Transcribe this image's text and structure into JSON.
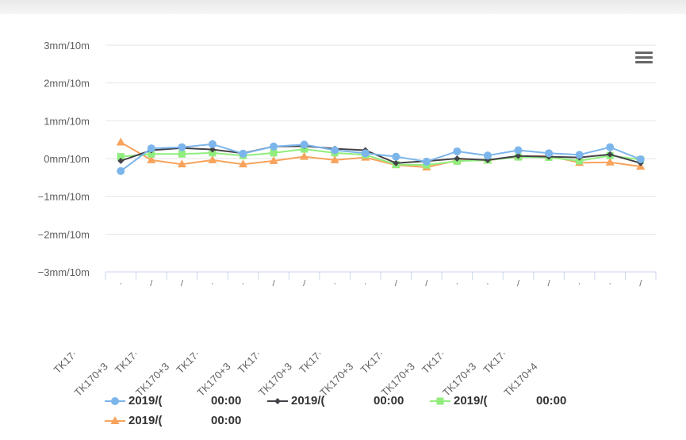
{
  "chart_data": {
    "type": "line",
    "yaxis": {
      "ticks": [
        "3mm/10m",
        "2mm/10m",
        "1mm/10m",
        "0mm/10m",
        "−1mm/10m",
        "−2mm/10m",
        "−3mm/10m"
      ],
      "ylim": [
        -3,
        3
      ]
    },
    "xaxis": {
      "labels": [
        "TK17·",
        "TK170+3",
        "TK17·",
        "TK170+3",
        "TK17·",
        "TK170+3",
        "TK17·",
        "TK170+3",
        "TK17·",
        "TK170+3",
        "TK17·",
        "TK170+3",
        "TK17·",
        "TK170+3",
        "TK17·",
        "TK170+4"
      ]
    },
    "grid": true,
    "legend_position": "bottom",
    "series": [
      {
        "name": "2019/(",
        "time": "00:00",
        "color": "#7cb5ec",
        "marker": "circle",
        "values": [
          -0.33,
          0.27,
          0.3,
          0.38,
          0.13,
          0.32,
          0.37,
          0.22,
          0.14,
          0.05,
          -0.08,
          0.19,
          0.08,
          0.22,
          0.14,
          0.1,
          0.3,
          -0.02
        ]
      },
      {
        "name": "2019/(",
        "time": "00:00",
        "color": "#434348",
        "marker": "diamond",
        "values": [
          -0.06,
          0.22,
          0.28,
          0.24,
          0.14,
          0.32,
          0.33,
          0.26,
          0.22,
          -0.12,
          -0.07,
          0.0,
          -0.04,
          0.07,
          0.05,
          0.03,
          0.11,
          -0.12
        ]
      },
      {
        "name": "2019/(",
        "time": "00:00",
        "color": "#90ed7d",
        "marker": "square",
        "values": [
          0.05,
          0.12,
          0.12,
          0.15,
          0.08,
          0.15,
          0.25,
          0.15,
          0.1,
          -0.16,
          -0.17,
          -0.07,
          -0.04,
          0.04,
          0.03,
          -0.06,
          0.08,
          -0.03
        ]
      },
      {
        "name": "2019/(",
        "time": "00:00",
        "color": "#f7a35c",
        "marker": "triangle",
        "values": [
          0.43,
          -0.04,
          -0.15,
          -0.04,
          -0.15,
          -0.06,
          0.05,
          -0.04,
          0.03,
          -0.17,
          -0.23,
          -0.05,
          -0.05,
          0.06,
          0.07,
          -0.11,
          -0.1,
          -0.21
        ]
      }
    ]
  },
  "menu": {
    "icon": "hamburger-menu-icon"
  }
}
